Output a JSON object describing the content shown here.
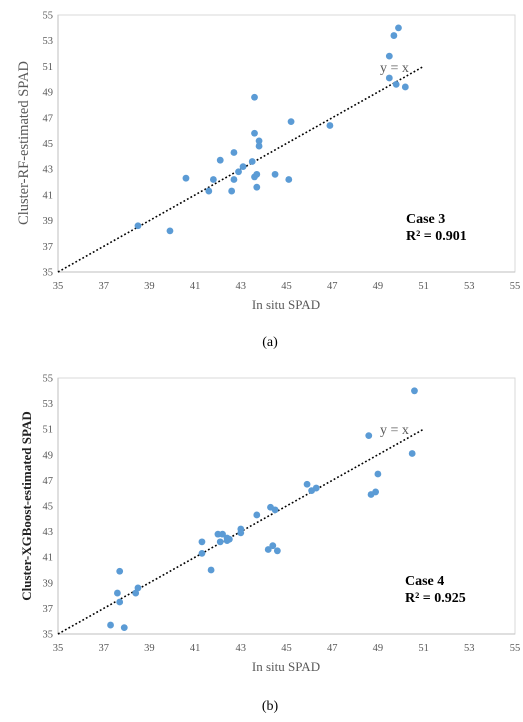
{
  "chart_data": [
    {
      "type": "scatter",
      "caption": "(a)",
      "xlabel": "In situ SPAD",
      "ylabel": "Cluster-RF-estimated SPAD",
      "xlim": [
        35,
        55
      ],
      "ylim": [
        35,
        55
      ],
      "xticks": [
        35,
        37,
        39,
        41,
        43,
        45,
        47,
        49,
        51,
        53,
        55
      ],
      "yticks": [
        35,
        37,
        39,
        41,
        43,
        45,
        47,
        49,
        51,
        53,
        55
      ],
      "grid": false,
      "reference_line": {
        "label": "y = x",
        "from": [
          35,
          35
        ],
        "to": [
          51,
          51
        ]
      },
      "annotation": {
        "case": "Case 3",
        "r2": "R² = 0.901"
      },
      "point_color": "#5b9bd5",
      "points": [
        [
          38.5,
          38.6
        ],
        [
          39.9,
          38.2
        ],
        [
          40.6,
          42.3
        ],
        [
          41.6,
          41.3
        ],
        [
          41.8,
          42.2
        ],
        [
          42.1,
          43.7
        ],
        [
          42.6,
          41.3
        ],
        [
          42.7,
          42.2
        ],
        [
          42.7,
          44.3
        ],
        [
          42.9,
          42.8
        ],
        [
          43.1,
          43.2
        ],
        [
          43.5,
          43.6
        ],
        [
          43.6,
          45.8
        ],
        [
          43.6,
          42.4
        ],
        [
          43.6,
          48.6
        ],
        [
          43.7,
          42.6
        ],
        [
          43.7,
          41.6
        ],
        [
          43.8,
          45.2
        ],
        [
          43.8,
          44.8
        ],
        [
          44.5,
          42.6
        ],
        [
          45.1,
          42.2
        ],
        [
          45.2,
          46.7
        ],
        [
          46.9,
          46.4
        ],
        [
          49.5,
          51.8
        ],
        [
          49.5,
          50.1
        ],
        [
          49.7,
          53.4
        ],
        [
          49.8,
          49.6
        ],
        [
          49.9,
          54.0
        ],
        [
          50.2,
          49.4
        ]
      ]
    },
    {
      "type": "scatter",
      "caption": "(b)",
      "xlabel": "In situ SPAD",
      "ylabel": "Cluster-XGBoost-estimated SPAD",
      "xlim": [
        35,
        55
      ],
      "ylim": [
        35,
        55
      ],
      "xticks": [
        35,
        37,
        39,
        41,
        43,
        45,
        47,
        49,
        51,
        53,
        55
      ],
      "yticks": [
        35,
        37,
        39,
        41,
        43,
        45,
        47,
        49,
        51,
        53,
        55
      ],
      "grid": false,
      "reference_line": {
        "label": "y = x",
        "from": [
          35,
          35
        ],
        "to": [
          51,
          51
        ]
      },
      "annotation": {
        "case": "Case 4",
        "r2": "R² = 0.925"
      },
      "point_color": "#5b9bd5",
      "points": [
        [
          37.3,
          35.7
        ],
        [
          37.6,
          38.2
        ],
        [
          37.7,
          39.9
        ],
        [
          37.7,
          37.5
        ],
        [
          37.9,
          35.5
        ],
        [
          38.4,
          38.2
        ],
        [
          38.5,
          38.6
        ],
        [
          41.3,
          42.2
        ],
        [
          41.3,
          41.3
        ],
        [
          41.7,
          40.0
        ],
        [
          42.0,
          42.8
        ],
        [
          42.1,
          42.2
        ],
        [
          42.2,
          42.8
        ],
        [
          42.4,
          42.5
        ],
        [
          42.4,
          42.3
        ],
        [
          42.5,
          42.4
        ],
        [
          43.0,
          43.2
        ],
        [
          43.0,
          42.9
        ],
        [
          43.7,
          44.3
        ],
        [
          44.2,
          41.6
        ],
        [
          44.3,
          44.9
        ],
        [
          44.4,
          41.9
        ],
        [
          44.5,
          44.7
        ],
        [
          44.6,
          41.5
        ],
        [
          45.9,
          46.7
        ],
        [
          46.1,
          46.2
        ],
        [
          46.3,
          46.4
        ],
        [
          48.6,
          50.5
        ],
        [
          48.7,
          45.9
        ],
        [
          48.9,
          46.1
        ],
        [
          49.0,
          47.5
        ],
        [
          50.5,
          49.1
        ],
        [
          50.6,
          54.0
        ]
      ]
    }
  ]
}
